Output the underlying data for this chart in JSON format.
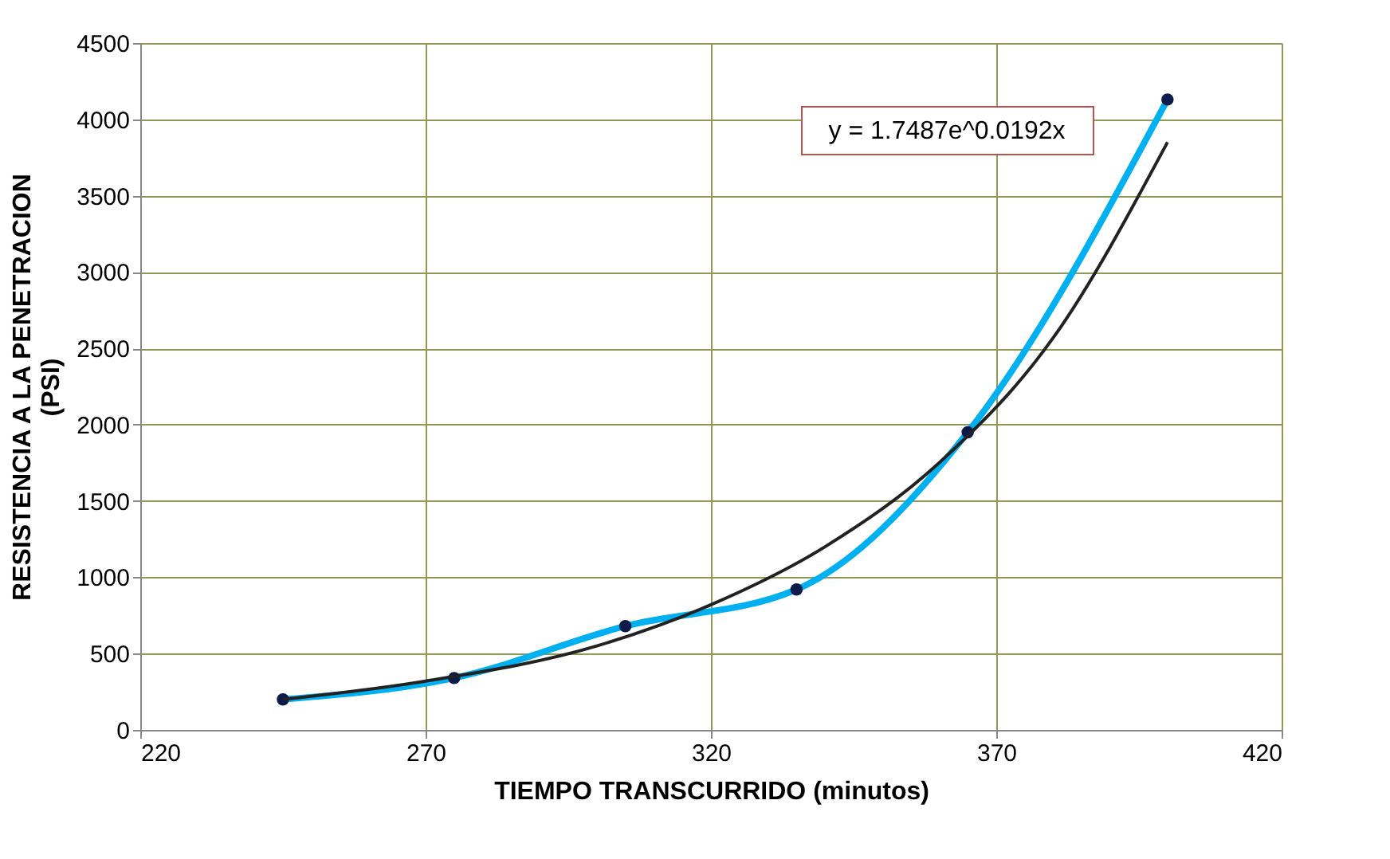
{
  "chart_data": {
    "type": "line",
    "xlabel": "TIEMPO TRANSCURRIDO (minutos)",
    "ylabel": "RESISTENCIA A LA PENETRACION (PSI)",
    "x": [
      245,
      275,
      305,
      335,
      365,
      400
    ],
    "series": [
      {
        "color": "#00b0f0",
        "values": [
          200,
          340,
          680,
          920,
          1950,
          4130
        ]
      },
      {
        "type": "line",
        "color": "#222222",
        "marker": "none",
        "x": [
          245,
          270,
          300,
          320,
          340,
          360,
          380,
          400
        ],
        "values": [
          200,
          320,
          550,
          820,
          1200,
          1750,
          2570,
          3850
        ]
      }
    ],
    "xlim": [
      220,
      420
    ],
    "xticks": [
      220,
      270,
      320,
      370,
      420
    ],
    "ylim": [
      0,
      4500
    ],
    "yticks": [
      0,
      500,
      1000,
      1500,
      2000,
      2500,
      3000,
      3500,
      4000,
      4500
    ],
    "grid": true,
    "marker": "circle",
    "annotations": [
      "y = 1.7487e^0.0192x"
    ]
  }
}
